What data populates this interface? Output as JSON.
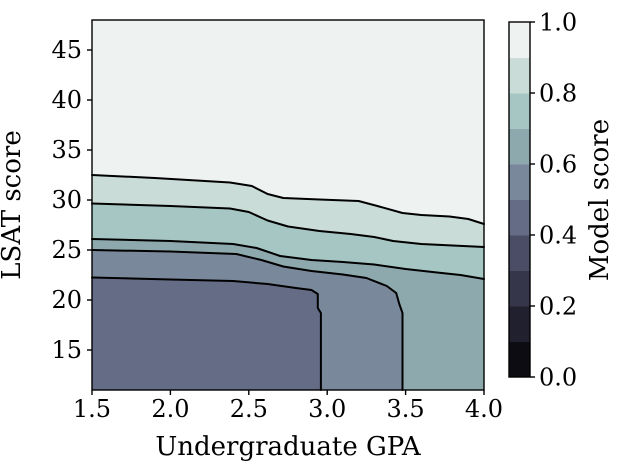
{
  "figure": {
    "background": "#ffffff",
    "axis_color": "#000000"
  },
  "chart_data": {
    "type": "filled_contour",
    "title": "",
    "xlabel": "Undergraduate GPA",
    "ylabel": "LSAT score",
    "colorbar_label": "Model score",
    "xlim": [
      1.5,
      4.0
    ],
    "ylim": [
      11,
      48
    ],
    "grid": false,
    "x_ticks": [
      1.5,
      2.0,
      2.5,
      3.0,
      3.5,
      4.0
    ],
    "x_tick_labels": [
      "1.5",
      "2.0",
      "2.5",
      "3.0",
      "3.5",
      "4.0"
    ],
    "y_ticks": [
      15,
      20,
      25,
      30,
      35,
      40,
      45
    ],
    "y_tick_labels": [
      "15",
      "20",
      "25",
      "30",
      "35",
      "40",
      "45"
    ],
    "colorbar_range": [
      0.0,
      1.0
    ],
    "colorbar_ticks": [
      0.0,
      0.2,
      0.4,
      0.6,
      0.8,
      1.0
    ],
    "colorbar_tick_labels": [
      "0.0",
      "0.2",
      "0.4",
      "0.6",
      "0.8",
      "1.0"
    ],
    "levels": [
      0.0,
      0.1,
      0.2,
      0.3,
      0.4,
      0.5,
      0.6,
      0.7,
      0.8,
      0.9,
      1.0
    ],
    "band_colors": [
      "#0d0c12",
      "#20202e",
      "#36364b",
      "#4b4c66",
      "#656c86",
      "#79889b",
      "#8da9ad",
      "#a5c6c2",
      "#c9dcd8",
      "#eef3f1"
    ],
    "contour_line_color": "#000000",
    "contours": [
      {
        "level": 0.9,
        "points": [
          [
            1.5,
            32.5
          ],
          [
            1.9,
            32.2
          ],
          [
            2.38,
            31.75
          ],
          [
            2.52,
            31.4
          ],
          [
            2.62,
            30.6
          ],
          [
            2.72,
            30.2
          ],
          [
            2.95,
            30.05
          ],
          [
            3.2,
            29.9
          ],
          [
            3.32,
            29.4
          ],
          [
            3.48,
            28.7
          ],
          [
            3.6,
            28.5
          ],
          [
            3.78,
            28.35
          ],
          [
            3.9,
            28.1
          ],
          [
            4.0,
            27.6
          ]
        ]
      },
      {
        "level": 0.8,
        "points": [
          [
            1.5,
            29.65
          ],
          [
            2.0,
            29.4
          ],
          [
            2.38,
            29.15
          ],
          [
            2.5,
            28.8
          ],
          [
            2.62,
            27.95
          ],
          [
            2.75,
            27.35
          ],
          [
            2.95,
            26.9
          ],
          [
            3.15,
            26.6
          ],
          [
            3.3,
            26.3
          ],
          [
            3.42,
            25.9
          ],
          [
            3.6,
            25.6
          ],
          [
            3.8,
            25.45
          ],
          [
            4.0,
            25.3
          ]
        ]
      },
      {
        "level": 0.7,
        "points": [
          [
            1.5,
            26.1
          ],
          [
            2.0,
            25.9
          ],
          [
            2.4,
            25.6
          ],
          [
            2.55,
            25.2
          ],
          [
            2.7,
            24.4
          ],
          [
            2.9,
            24.0
          ],
          [
            3.1,
            23.8
          ],
          [
            3.3,
            23.55
          ],
          [
            3.5,
            23.1
          ],
          [
            3.7,
            22.75
          ],
          [
            3.85,
            22.5
          ],
          [
            4.0,
            22.1
          ]
        ]
      },
      {
        "level": 0.6,
        "points": [
          [
            1.5,
            25.0
          ],
          [
            2.0,
            24.85
          ],
          [
            2.42,
            24.6
          ],
          [
            2.58,
            24.0
          ],
          [
            2.72,
            23.35
          ],
          [
            2.9,
            22.9
          ],
          [
            3.1,
            22.55
          ],
          [
            3.25,
            22.2
          ],
          [
            3.38,
            21.4
          ],
          [
            3.44,
            20.7
          ],
          [
            3.46,
            19.6
          ],
          [
            3.48,
            18.7
          ],
          [
            3.48,
            11
          ]
        ]
      },
      {
        "level": 0.5,
        "points": [
          [
            1.5,
            22.25
          ],
          [
            2.0,
            22.05
          ],
          [
            2.4,
            21.9
          ],
          [
            2.62,
            21.6
          ],
          [
            2.8,
            21.2
          ],
          [
            2.9,
            21.0
          ],
          [
            2.94,
            20.6
          ],
          [
            2.94,
            19.2
          ],
          [
            2.96,
            18.7
          ],
          [
            2.96,
            11
          ]
        ]
      }
    ]
  }
}
